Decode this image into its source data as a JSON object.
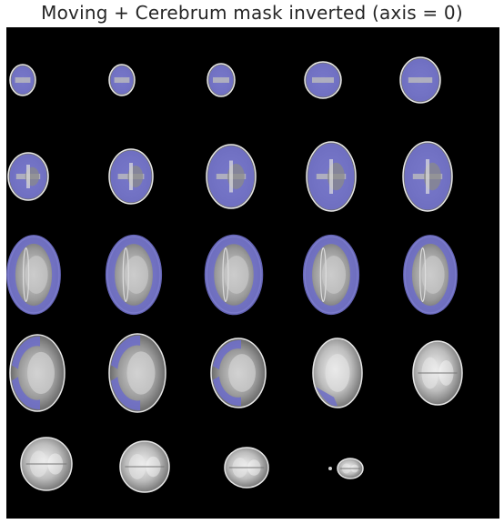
{
  "figure": {
    "title": "Moving + Cerebrum mask inverted (axis = 0)",
    "background_color": "#000000",
    "mask_color": "#6f6fc8",
    "tissue_color": "#b9b9b9"
  },
  "montage": {
    "rows": 5,
    "cols": 5,
    "slices": [
      {
        "mask": "full",
        "tissue": "small"
      },
      {
        "mask": "full",
        "tissue": "small"
      },
      {
        "mask": "full",
        "tissue": "small"
      },
      {
        "mask": "full",
        "tissue": "medium"
      },
      {
        "mask": "full",
        "tissue": "medium"
      },
      {
        "mask": "full",
        "tissue": "medium"
      },
      {
        "mask": "full",
        "tissue": "medium"
      },
      {
        "mask": "full",
        "tissue": "medium"
      },
      {
        "mask": "full",
        "tissue": "medium"
      },
      {
        "mask": "full",
        "tissue": "medium"
      },
      {
        "mask": "ring",
        "tissue": "large"
      },
      {
        "mask": "ring",
        "tissue": "large"
      },
      {
        "mask": "ring",
        "tissue": "large"
      },
      {
        "mask": "ring",
        "tissue": "large"
      },
      {
        "mask": "ring",
        "tissue": "large"
      },
      {
        "mask": "partial",
        "tissue": "large"
      },
      {
        "mask": "partial",
        "tissue": "large"
      },
      {
        "mask": "partial",
        "tissue": "large"
      },
      {
        "mask": "trace",
        "tissue": "large"
      },
      {
        "mask": "none",
        "tissue": "large"
      },
      {
        "mask": "none",
        "tissue": "large"
      },
      {
        "mask": "none",
        "tissue": "medium"
      },
      {
        "mask": "none",
        "tissue": "small"
      },
      {
        "mask": "none",
        "tissue": "tiny"
      },
      {
        "mask": "empty",
        "tissue": "none"
      }
    ]
  }
}
